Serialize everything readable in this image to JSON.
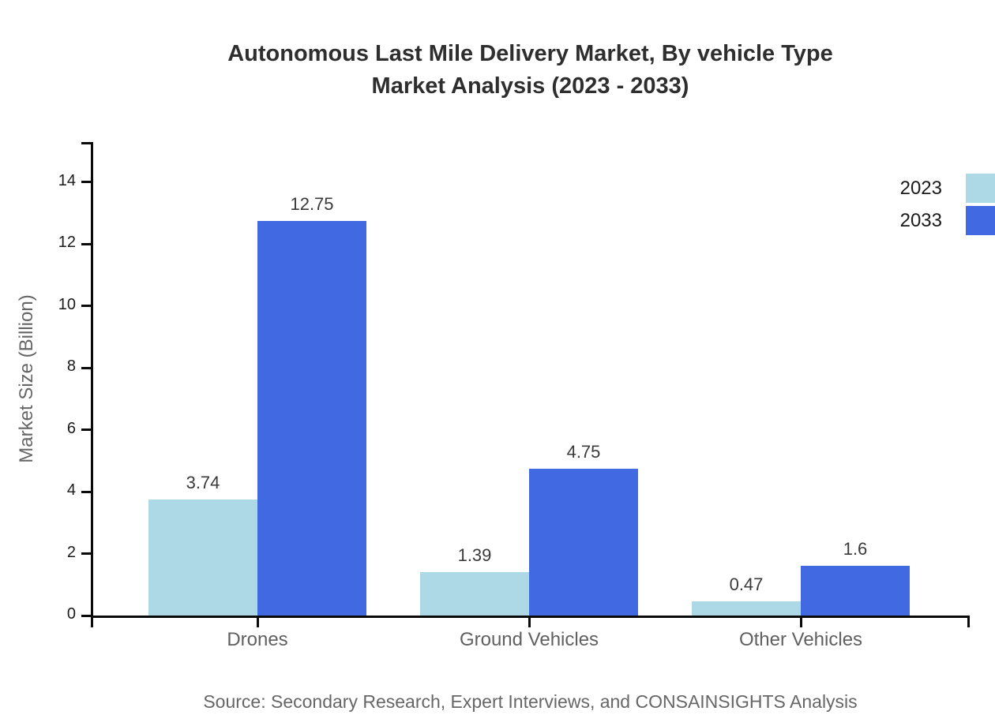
{
  "page": {
    "title_line1": "Autonomous Last Mile Delivery Market, By vehicle Type",
    "title_line2": "Market Analysis (2023 - 2033)",
    "source": "Source: Secondary Research, Expert Interviews, and CONSAINSIGHTS Analysis"
  },
  "chart_data": {
    "type": "bar",
    "title": "Autonomous Last Mile Delivery Market, By vehicle Type Market Analysis (2023 - 2033)",
    "ylabel": "Market Size (Billion)",
    "xlabel": "",
    "categories": [
      "Drones",
      "Ground Vehicles",
      "Other Vehicles"
    ],
    "series": [
      {
        "name": "2023",
        "color": "#ADD8E6",
        "values": [
          3.74,
          1.39,
          0.47
        ]
      },
      {
        "name": "2033",
        "color": "#4169E1",
        "values": [
          12.75,
          4.75,
          1.6
        ]
      }
    ],
    "yticks": [
      0,
      2,
      4,
      6,
      8,
      10,
      12,
      14
    ],
    "ylim": [
      0,
      15.3
    ],
    "grid": false,
    "legend_position": "top-right",
    "bar_value_labels": true,
    "axis_color": "#0a0a0a"
  }
}
